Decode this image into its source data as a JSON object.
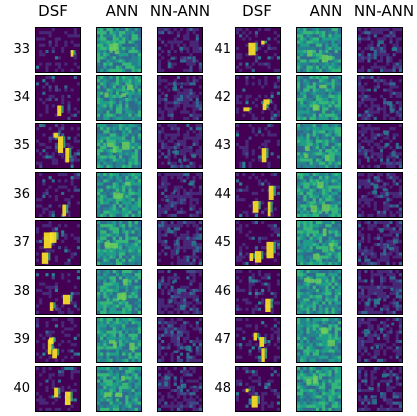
{
  "headers": [
    "DSF",
    "ANN",
    "NN-ANN",
    "DSF",
    "ANN",
    "NN-ANN"
  ],
  "left_rows": [
    "33",
    "34",
    "35",
    "36",
    "37",
    "38",
    "39",
    "40"
  ],
  "right_rows": [
    "41",
    "42",
    "43",
    "44",
    "45",
    "46",
    "47",
    "48"
  ],
  "colors": {
    "dark_bg": "#3b0f6f",
    "mid_bg": "#2a9d8c",
    "bright": "#fde725",
    "teal": "#35b779",
    "blue": "#31688e",
    "border": "#000000"
  }
}
